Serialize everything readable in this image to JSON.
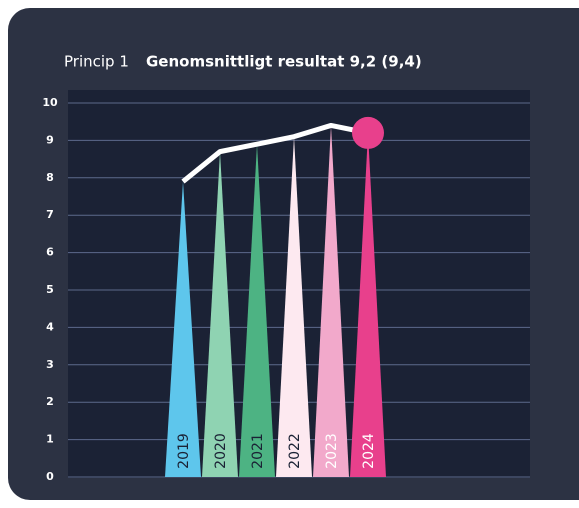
{
  "chart_data": {
    "type": "spike",
    "label": "Princip 1",
    "title": "Genomsnittligt resultat  9,2 (9,4)",
    "categories": [
      "2019",
      "2020",
      "2021",
      "2022",
      "2023",
      "2024"
    ],
    "values": [
      7.9,
      8.7,
      8.9,
      9.1,
      9.4,
      9.2
    ],
    "colors": [
      "#5ec6ec",
      "#8fd3b2",
      "#4db383",
      "#fde9f0",
      "#f2a9cb",
      "#e8408c"
    ],
    "label_colors": [
      "#1b2235",
      "#1b2235",
      "#1b2235",
      "#1b2235",
      "#ffffff",
      "#ffffff"
    ],
    "line_color": "#ffffff",
    "marker_color": "#e8408c",
    "ylim": [
      0,
      10
    ],
    "yticks": [
      0,
      1,
      2,
      3,
      4,
      5,
      6,
      7,
      8,
      9,
      10
    ],
    "grid": true
  }
}
